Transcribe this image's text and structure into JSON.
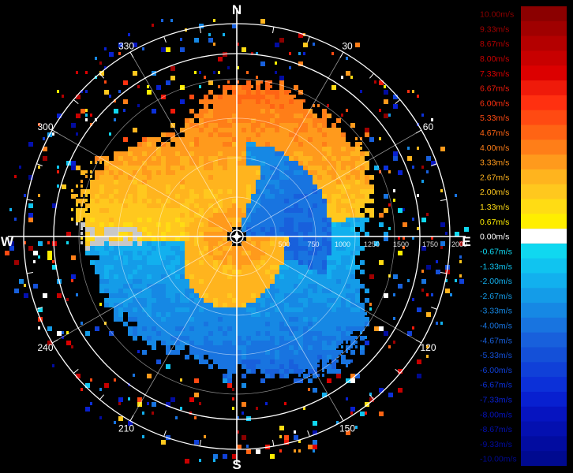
{
  "compass": {
    "north": "N",
    "south": "S",
    "east": "E",
    "west": "W"
  },
  "azimuth_labels": [
    {
      "deg": 30,
      "text": "30"
    },
    {
      "deg": 60,
      "text": "60"
    },
    {
      "deg": 120,
      "text": "120"
    },
    {
      "deg": 150,
      "text": "150"
    },
    {
      "deg": 210,
      "text": "210"
    },
    {
      "deg": 240,
      "text": "240"
    },
    {
      "deg": 300,
      "text": "300"
    },
    {
      "deg": 330,
      "text": "330"
    }
  ],
  "range_labels": [
    "500",
    "750",
    "1000",
    "1250",
    "1500",
    "1750",
    "2000"
  ],
  "colors": {
    "background": "#000000",
    "grid": "#ffffff",
    "no_data": "#c8c8c8",
    "legend_zero": "#ffffff"
  },
  "chart_data": {
    "type": "heatmap",
    "title": "",
    "unit": "m/s",
    "range_ring_values": [
      500,
      750,
      1000,
      1250,
      1500,
      1750,
      2000
    ],
    "azimuth_grid_deg": [
      0,
      30,
      60,
      90,
      120,
      150,
      180,
      210,
      240,
      270,
      300,
      330
    ],
    "velocity_pattern": "positive (toward warm colors) in northern half, negative (blue) in southern half; center region reversed",
    "colorbar": [
      {
        "label": "10.00m/s",
        "value": 10.0,
        "color": "#8b0000"
      },
      {
        "label": "9.33m/s",
        "value": 9.33,
        "color": "#a00000"
      },
      {
        "label": "8.67m/s",
        "value": 8.67,
        "color": "#b40000"
      },
      {
        "label": "8.00m/s",
        "value": 8.0,
        "color": "#c80000"
      },
      {
        "label": "7.33m/s",
        "value": 7.33,
        "color": "#dc0000"
      },
      {
        "label": "6.67m/s",
        "value": 6.67,
        "color": "#ef1a0a"
      },
      {
        "label": "6.00m/s",
        "value": 6.0,
        "color": "#ff3010"
      },
      {
        "label": "5.33m/s",
        "value": 5.33,
        "color": "#ff4a12"
      },
      {
        "label": "4.67m/s",
        "value": 4.67,
        "color": "#ff6414"
      },
      {
        "label": "4.00m/s",
        "value": 4.0,
        "color": "#ff7e18"
      },
      {
        "label": "3.33m/s",
        "value": 3.33,
        "color": "#ff9a1c"
      },
      {
        "label": "2.67m/s",
        "value": 2.67,
        "color": "#ffb41e"
      },
      {
        "label": "2.00m/s",
        "value": 2.0,
        "color": "#ffc81e"
      },
      {
        "label": "1.33m/s",
        "value": 1.33,
        "color": "#ffdc14"
      },
      {
        "label": "0.67m/s",
        "value": 0.67,
        "color": "#ffee00"
      },
      {
        "label": "0.00m/s",
        "value": 0.0,
        "color": "#ffffff"
      },
      {
        "label": "-0.67m/s",
        "value": -0.67,
        "color": "#10d8f0"
      },
      {
        "label": "-1.33m/s",
        "value": -1.33,
        "color": "#10c4f0"
      },
      {
        "label": "-2.00m/s",
        "value": -2.0,
        "color": "#12b0ee"
      },
      {
        "label": "-2.67m/s",
        "value": -2.67,
        "color": "#149ce8"
      },
      {
        "label": "-3.33m/s",
        "value": -3.33,
        "color": "#1688e4"
      },
      {
        "label": "-4.00m/s",
        "value": -4.0,
        "color": "#1874e0"
      },
      {
        "label": "-4.67m/s",
        "value": -4.67,
        "color": "#1860dc"
      },
      {
        "label": "-5.33m/s",
        "value": -5.33,
        "color": "#1450d8"
      },
      {
        "label": "-6.00m/s",
        "value": -6.0,
        "color": "#1040d8"
      },
      {
        "label": "-6.67m/s",
        "value": -6.67,
        "color": "#0c30d8"
      },
      {
        "label": "-7.33m/s",
        "value": -7.33,
        "color": "#0820d0"
      },
      {
        "label": "-8.00m/s",
        "value": -8.0,
        "color": "#0614c0"
      },
      {
        "label": "-8.67m/s",
        "value": -8.67,
        "color": "#0410b0"
      },
      {
        "label": "-9.33m/s",
        "value": -9.33,
        "color": "#020ca0"
      },
      {
        "label": "-10.00m/s",
        "value": -10.0,
        "color": "#000a90"
      }
    ]
  }
}
